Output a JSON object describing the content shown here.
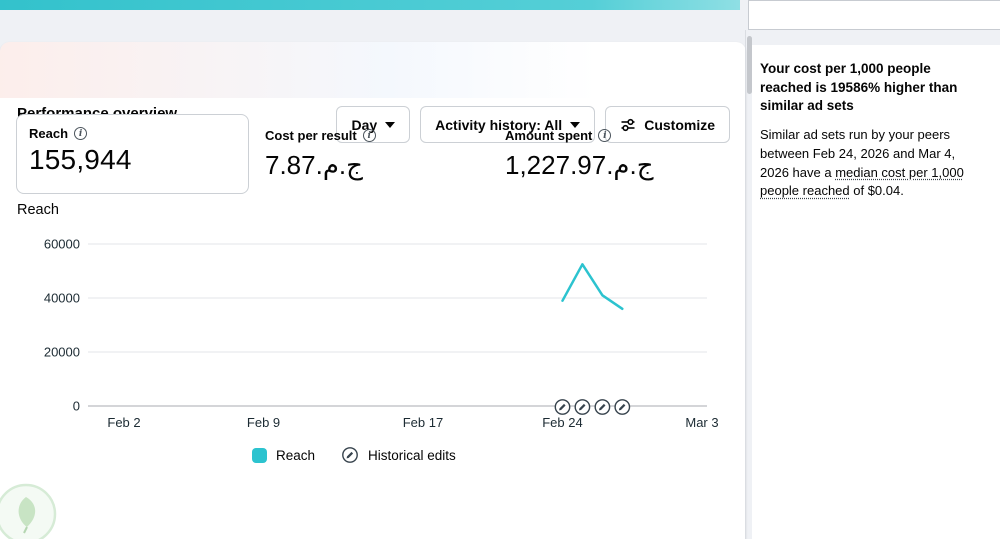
{
  "colors": {
    "accent_teal": "#2cc3cf",
    "border": "#ccd0d5",
    "background": "#eff1f5",
    "text": "#050505"
  },
  "header": {
    "title": "Performance overview",
    "day_dropdown_label": "Day",
    "activity_dropdown_label": "Activity history: All",
    "customize_label": "Customize"
  },
  "metrics": [
    {
      "label": "Reach",
      "value": "155,944"
    },
    {
      "label": "Cost per result",
      "value": "7.87.م.ج"
    },
    {
      "label": "Amount spent",
      "value": "1,227.97.م.ج"
    }
  ],
  "chart_data": {
    "type": "line",
    "title": "Reach",
    "xlabel": "",
    "ylabel": "",
    "ylim": [
      0,
      60000
    ],
    "grid": "horizontal",
    "legend_position": "bottom",
    "y_ticks": [
      60000,
      40000,
      20000,
      0
    ],
    "x_ticks": [
      {
        "label": "Feb 2",
        "d": 1
      },
      {
        "label": "Feb 9",
        "d": 8
      },
      {
        "label": "Feb 17",
        "d": 16
      },
      {
        "label": "Feb 24",
        "d": 23
      },
      {
        "label": "Mar 3",
        "d": 30
      }
    ],
    "series": [
      {
        "name": "Reach",
        "color": "#2cc3cf",
        "points": [
          {
            "date": "Feb 24",
            "d": 23,
            "value": 39000
          },
          {
            "date": "Feb 25",
            "d": 24,
            "value": 52500
          },
          {
            "date": "Feb 26",
            "d": 25,
            "value": 41000
          },
          {
            "date": "Feb 27",
            "d": 26,
            "value": 36000
          }
        ]
      }
    ],
    "historical_edits": [
      {
        "date": "Feb 24",
        "d": 23
      },
      {
        "date": "Feb 25",
        "d": 24
      },
      {
        "date": "Feb 26",
        "d": 25
      },
      {
        "date": "Feb 27",
        "d": 26
      }
    ],
    "legend": [
      {
        "label": "Reach",
        "swatch": "teal-square"
      },
      {
        "label": "Historical edits",
        "swatch": "pencil-circle-icon"
      }
    ]
  },
  "insight": {
    "title": "Your cost per 1,000 people reached is 19586% higher than similar ad sets",
    "body_prefix": "Similar ad sets run by your peers between Feb 24, 2026 and Mar 4, 2026 have a ",
    "underlined_term": "median cost per 1,000 people reached",
    "body_suffix": " of $0.04."
  }
}
